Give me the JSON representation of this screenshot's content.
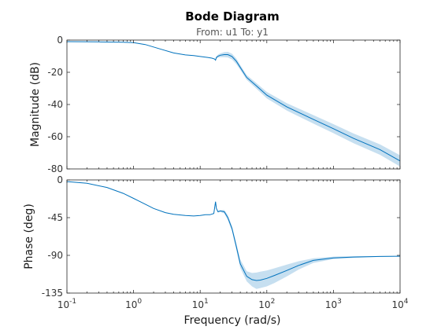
{
  "chart_data": {
    "type": "line",
    "title": "Bode Diagram",
    "subtitle": "From: u1  To: y1",
    "xlabel": "Frequency  (rad/s)",
    "xscale": "log",
    "xlim": [
      0.1,
      10000
    ],
    "xticks": [
      {
        "value": 0.1,
        "base": "10",
        "exp": "-1"
      },
      {
        "value": 1,
        "base": "10",
        "exp": "0"
      },
      {
        "value": 10,
        "base": "10",
        "exp": "1"
      },
      {
        "value": 100,
        "base": "10",
        "exp": "2"
      },
      {
        "value": 1000,
        "base": "10",
        "exp": "3"
      },
      {
        "value": 10000,
        "base": "10",
        "exp": "4"
      }
    ],
    "colors": {
      "line": "#0072BD",
      "band": "#c6dff0"
    },
    "panels": [
      {
        "name": "magnitude",
        "ylabel": "Magnitude (dB)",
        "ylim": [
          -80,
          0
        ],
        "yticks": [
          0,
          -20,
          -40,
          -60,
          -80
        ],
        "x": [
          0.1,
          0.3,
          0.7,
          1,
          1.5,
          2.5,
          4,
          6,
          8,
          10,
          13,
          15,
          16.5,
          17,
          17.5,
          18.5,
          20,
          23,
          26,
          30,
          35,
          40,
          50,
          70,
          100,
          200,
          500,
          1000,
          2000,
          5000,
          10000
        ],
        "y": [
          -1.0,
          -1.1,
          -1.3,
          -1.6,
          -2.8,
          -5.5,
          -8.0,
          -9.2,
          -9.6,
          -10.2,
          -10.8,
          -11.2,
          -11.8,
          -12.5,
          -10.8,
          -10.0,
          -9.4,
          -9.0,
          -9.0,
          -10.2,
          -13.2,
          -17.0,
          -23.2,
          -28.5,
          -34.2,
          -41.5,
          -49.2,
          -55.0,
          -61.0,
          -68.0,
          -75.0
        ],
        "y_low": [
          -1.0,
          -1.1,
          -1.3,
          -1.6,
          -2.8,
          -5.5,
          -8.0,
          -9.2,
          -9.6,
          -10.2,
          -10.8,
          -11.2,
          -11.8,
          -12.5,
          -11.5,
          -11.0,
          -10.6,
          -10.6,
          -10.8,
          -12.0,
          -15.0,
          -18.5,
          -24.7,
          -30.2,
          -36.2,
          -43.8,
          -51.8,
          -57.8,
          -64.0,
          -71.2,
          -78.5
        ],
        "y_high": [
          -1.0,
          -1.1,
          -1.3,
          -1.6,
          -2.8,
          -5.5,
          -8.0,
          -9.2,
          -9.6,
          -10.2,
          -10.8,
          -11.2,
          -11.8,
          -12.5,
          -10.2,
          -9.0,
          -8.3,
          -7.5,
          -7.3,
          -8.5,
          -11.5,
          -15.5,
          -21.7,
          -26.8,
          -32.2,
          -39.2,
          -46.6,
          -52.2,
          -58.0,
          -64.8,
          -71.5
        ]
      },
      {
        "name": "phase",
        "ylabel": "Phase (deg)",
        "ylim": [
          -135,
          0
        ],
        "yticks": [
          0,
          -45,
          -90,
          -135
        ],
        "x": [
          0.1,
          0.2,
          0.4,
          0.7,
          1,
          1.5,
          2,
          3,
          4,
          6,
          8,
          10,
          12,
          14,
          16,
          17,
          17.5,
          18.5,
          20,
          23,
          26,
          30,
          35,
          40,
          50,
          60,
          70,
          80,
          100,
          130,
          200,
          300,
          500,
          1000,
          2000,
          5000,
          10000
        ],
        "y": [
          -2,
          -4,
          -9,
          -16,
          -22,
          -29,
          -34,
          -39,
          -41,
          -42.5,
          -43,
          -42.5,
          -41.5,
          -41.5,
          -40,
          -26,
          -34,
          -38,
          -37,
          -38,
          -45,
          -58,
          -80,
          -100,
          -115,
          -119,
          -120,
          -119.5,
          -117.5,
          -114,
          -108,
          -102,
          -96,
          -93,
          -92,
          -91.3,
          -91
        ],
        "y_low": [
          -2,
          -4,
          -9,
          -16,
          -22,
          -29,
          -34,
          -39,
          -41,
          -42.5,
          -43,
          -42.5,
          -41.5,
          -41.5,
          -40,
          -26,
          -34,
          -39,
          -38,
          -40,
          -48,
          -61,
          -84,
          -105,
          -121,
          -127,
          -130,
          -129,
          -127,
          -123,
          -115,
          -107,
          -99,
          -94.5,
          -93,
          -91.8,
          -91.3
        ],
        "y_high": [
          -2,
          -4,
          -9,
          -16,
          -22,
          -29,
          -34,
          -39,
          -41,
          -42.5,
          -43,
          -42.5,
          -41.5,
          -41.5,
          -40,
          -26,
          -34,
          -37,
          -36,
          -36,
          -42,
          -55,
          -76,
          -95,
          -109,
          -111,
          -110.5,
          -109.5,
          -108,
          -105.5,
          -101,
          -97,
          -93.5,
          -91.5,
          -91,
          -90.8,
          -90.7
        ]
      }
    ]
  }
}
